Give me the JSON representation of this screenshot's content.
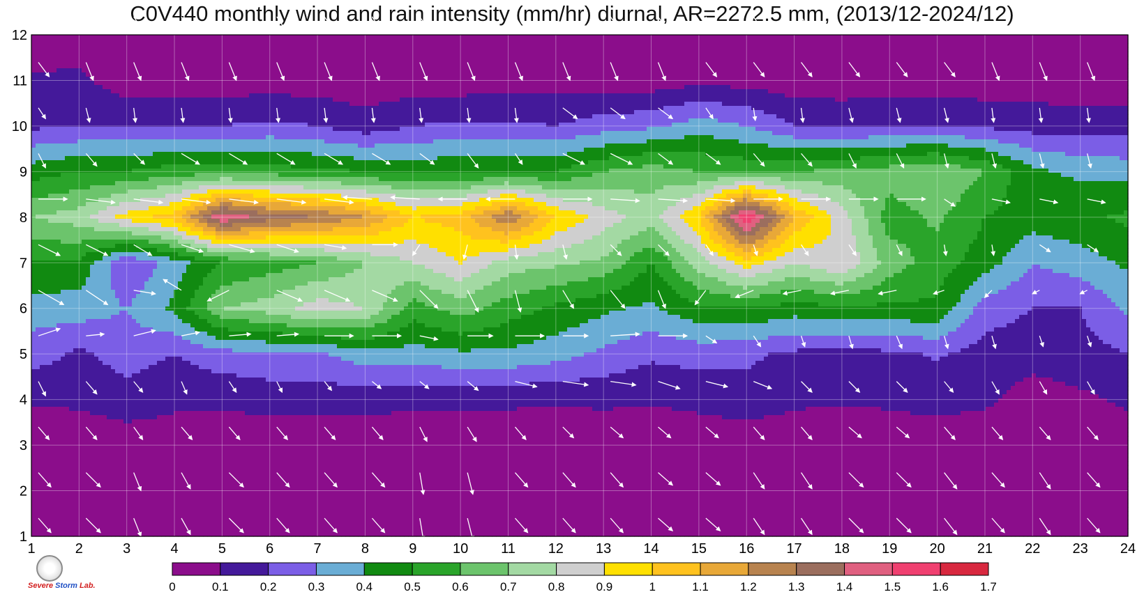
{
  "title": "C0V440 monthly wind and rain intensity (mm/hr) diurnal, AR=2272.5 mm, (2013/12-2024/12)",
  "chart_data": {
    "type": "heatmap",
    "title": "C0V440 monthly wind and rain intensity (mm/hr) diurnal, AR=2272.5 mm, (2013/12-2024/12)",
    "xlabel": "",
    "ylabel": "",
    "xlim": [
      1,
      24
    ],
    "ylim": [
      1,
      12
    ],
    "x_ticks": [
      1,
      2,
      3,
      4,
      5,
      6,
      7,
      8,
      9,
      10,
      11,
      12,
      13,
      14,
      15,
      16,
      17,
      18,
      19,
      20,
      21,
      22,
      23,
      24
    ],
    "y_ticks": [
      1,
      2,
      3,
      4,
      5,
      6,
      7,
      8,
      9,
      10,
      11,
      12
    ],
    "grid": true,
    "x": [
      1,
      2,
      3,
      4,
      5,
      6,
      7,
      8,
      9,
      10,
      11,
      12,
      13,
      14,
      15,
      16,
      17,
      18,
      19,
      20,
      21,
      22,
      23,
      24
    ],
    "y": [
      1,
      2,
      3,
      4,
      5,
      6,
      7,
      8,
      9,
      10,
      11,
      12
    ],
    "z": [
      [
        0.02,
        0.02,
        0.02,
        0.02,
        0.02,
        0.02,
        0.02,
        0.02,
        0.02,
        0.02,
        0.02,
        0.02,
        0.02,
        0.02,
        0.02,
        0.02,
        0.02,
        0.02,
        0.02,
        0.02,
        0.02,
        0.02,
        0.02,
        0.02
      ],
      [
        0.02,
        0.02,
        0.02,
        0.02,
        0.02,
        0.02,
        0.02,
        0.02,
        0.02,
        0.02,
        0.02,
        0.02,
        0.02,
        0.02,
        0.02,
        0.02,
        0.02,
        0.02,
        0.02,
        0.02,
        0.02,
        0.02,
        0.02,
        0.02
      ],
      [
        0.03,
        0.03,
        0.05,
        0.05,
        0.03,
        0.03,
        0.03,
        0.03,
        0.03,
        0.03,
        0.03,
        0.03,
        0.03,
        0.03,
        0.03,
        0.03,
        0.03,
        0.03,
        0.03,
        0.03,
        0.03,
        0.03,
        0.03,
        0.03
      ],
      [
        0.11,
        0.12,
        0.15,
        0.12,
        0.12,
        0.14,
        0.14,
        0.14,
        0.12,
        0.12,
        0.12,
        0.11,
        0.12,
        0.11,
        0.13,
        0.16,
        0.12,
        0.11,
        0.12,
        0.14,
        0.12,
        0.05,
        0.08,
        0.12
      ],
      [
        0.25,
        0.18,
        0.25,
        0.2,
        0.26,
        0.28,
        0.28,
        0.36,
        0.36,
        0.38,
        0.38,
        0.34,
        0.28,
        0.22,
        0.24,
        0.22,
        0.18,
        0.16,
        0.18,
        0.21,
        0.16,
        0.14,
        0.16,
        0.2
      ],
      [
        0.35,
        0.35,
        0.3,
        0.42,
        0.7,
        0.75,
        0.85,
        0.8,
        0.55,
        0.65,
        0.55,
        0.48,
        0.42,
        0.38,
        0.48,
        0.5,
        0.45,
        0.48,
        0.48,
        0.48,
        0.25,
        0.2,
        0.2,
        0.32
      ],
      [
        0.5,
        0.48,
        0.2,
        0.35,
        0.5,
        0.55,
        0.6,
        0.7,
        0.8,
        0.9,
        0.75,
        0.72,
        0.68,
        0.5,
        0.75,
        0.95,
        0.8,
        0.9,
        0.65,
        0.55,
        0.45,
        0.3,
        0.35,
        0.42
      ],
      [
        0.7,
        0.75,
        0.95,
        1.05,
        1.5,
        1.35,
        1.3,
        1.2,
        1.0,
        1.05,
        1.3,
        1.0,
        0.85,
        0.75,
        1.0,
        1.6,
        1.1,
        0.85,
        0.55,
        0.62,
        0.5,
        0.45,
        0.48,
        0.52
      ],
      [
        0.45,
        0.5,
        0.5,
        0.55,
        0.55,
        0.55,
        0.52,
        0.5,
        0.48,
        0.48,
        0.5,
        0.5,
        0.6,
        0.65,
        0.6,
        0.58,
        0.6,
        0.62,
        0.65,
        0.7,
        0.6,
        0.42,
        0.38,
        0.36
      ],
      [
        0.18,
        0.2,
        0.2,
        0.2,
        0.2,
        0.22,
        0.2,
        0.14,
        0.2,
        0.22,
        0.22,
        0.2,
        0.25,
        0.28,
        0.35,
        0.3,
        0.2,
        0.18,
        0.2,
        0.2,
        0.18,
        0.16,
        0.15,
        0.15
      ],
      [
        0.11,
        0.12,
        0.04,
        0.04,
        0.04,
        0.05,
        0.04,
        0.04,
        0.04,
        0.04,
        0.05,
        0.06,
        0.05,
        0.04,
        0.07,
        0.06,
        0.04,
        0.04,
        0.04,
        0.04,
        0.04,
        0.04,
        0.04,
        0.04
      ],
      [
        0.04,
        0.05,
        0.02,
        0.02,
        0.02,
        0.02,
        0.02,
        0.02,
        0.02,
        0.02,
        0.02,
        0.02,
        0.02,
        0.02,
        0.02,
        0.02,
        0.02,
        0.02,
        0.02,
        0.02,
        0.02,
        0.02,
        0.02,
        0.02
      ]
    ],
    "colorbar": {
      "levels": [
        0,
        0.1,
        0.2,
        0.3,
        0.4,
        0.5,
        0.6,
        0.7,
        0.8,
        0.9,
        1,
        1.1,
        1.2,
        1.3,
        1.4,
        1.5,
        1.6,
        1.7
      ],
      "labels": [
        "0",
        "0.1",
        "0.2",
        "0.3",
        "0.4",
        "0.5",
        "0.6",
        "0.7",
        "0.8",
        "0.9",
        "1",
        "1.1",
        "1.2",
        "1.3",
        "1.4",
        "1.5",
        "1.6",
        "1.7"
      ],
      "colors": [
        "#8b0d8b",
        "#44199a",
        "#7b5ee6",
        "#6aadd5",
        "#118a11",
        "#2aa42a",
        "#6cc46c",
        "#a3d9a3",
        "#cfcfcf",
        "#ffe000",
        "#ffc21e",
        "#e8a838",
        "#b8834f",
        "#9b6e5e",
        "#e06080",
        "#f04070",
        "#d8283f"
      ]
    },
    "wind": {
      "u": [
        [
          0.35,
          0.4,
          0.2,
          0.25,
          0.4,
          0.35,
          0.35,
          0.35,
          0.1,
          0.15,
          0.35,
          0.35,
          0.35,
          0.4,
          0.4,
          0.3,
          0.3,
          0.4,
          0.4,
          0.35,
          0.35,
          0.3,
          0.35,
          0.3
        ],
        [
          0.35,
          0.4,
          0.2,
          0.25,
          0.4,
          0.35,
          0.35,
          0.35,
          0.1,
          0.15,
          0.35,
          0.35,
          0.35,
          0.4,
          0.4,
          0.3,
          0.3,
          0.4,
          0.4,
          0.35,
          0.35,
          0.3,
          0.35,
          0.3
        ],
        [
          0.3,
          0.3,
          0.25,
          0.3,
          0.3,
          0.3,
          0.3,
          0.3,
          0.2,
          0.25,
          0.3,
          0.3,
          0.35,
          0.35,
          0.35,
          0.3,
          0.3,
          0.35,
          0.35,
          0.3,
          0.3,
          0.3,
          0.3,
          0.3
        ],
        [
          0.2,
          0.3,
          0.25,
          0.15,
          0.2,
          0.15,
          0.2,
          0.25,
          0.25,
          0.3,
          0.6,
          0.7,
          0.7,
          0.6,
          0.6,
          0.5,
          0.3,
          0.3,
          0.3,
          0.25,
          0.2,
          0.2,
          0.2,
          0.2
        ],
        [
          0.6,
          0.5,
          0.6,
          0.5,
          0.6,
          0.6,
          0.8,
          0.8,
          0.5,
          0.7,
          0.8,
          0.7,
          0.8,
          0.8,
          0.3,
          0.2,
          0.1,
          0.1,
          0.15,
          0.1,
          0.1,
          0.1,
          0.1,
          0.1
        ],
        [
          0.7,
          0.6,
          0.6,
          -0.5,
          -0.6,
          0.7,
          0.7,
          0.7,
          0.5,
          0.3,
          0.15,
          0.3,
          0.4,
          0.2,
          -0.3,
          -0.5,
          -0.5,
          -0.5,
          -0.5,
          -0.3,
          -0.2,
          -0.2,
          -0.2,
          0.3
        ],
        [
          0.6,
          0.6,
          0.5,
          0.6,
          0.7,
          0.6,
          0.6,
          0.7,
          -0.2,
          -0.1,
          0.05,
          0.1,
          0.3,
          0.3,
          0.2,
          0.1,
          0.2,
          0.2,
          0.15,
          0.05,
          0.05,
          0.3,
          0.3,
          0.3
        ],
        [
          0.8,
          0.8,
          0.8,
          0.8,
          0.8,
          0.8,
          0.8,
          -0.8,
          -0.8,
          -0.8,
          -0.8,
          0.8,
          0.8,
          0.8,
          0.8,
          0.8,
          0.8,
          0.8,
          0.8,
          0.3,
          0.5,
          0.5,
          0.5,
          0.5
        ],
        [
          0.2,
          0.3,
          0.3,
          0.5,
          0.5,
          0.5,
          0.5,
          0.5,
          0.4,
          0.3,
          0.2,
          0.6,
          0.6,
          0.4,
          0.4,
          0.3,
          0.3,
          0.2,
          0.2,
          0.1,
          0.1,
          0.1,
          0.1,
          0.1
        ],
        [
          0.2,
          0.1,
          0.05,
          0.05,
          0.05,
          0.05,
          0.05,
          0.05,
          0.05,
          0.05,
          0.05,
          0.4,
          0.4,
          0.4,
          0.2,
          0.05,
          0.05,
          0.1,
          0.1,
          0.1,
          0.05,
          0.05,
          0.05,
          0.05
        ],
        [
          0.3,
          0.2,
          0.2,
          0.2,
          0.2,
          0.2,
          0.2,
          0.2,
          0.2,
          0.2,
          0.2,
          0.2,
          0.2,
          0.2,
          0.3,
          0.3,
          0.3,
          0.3,
          0.3,
          0.3,
          0.2,
          0.2,
          0.2,
          0.2
        ],
        [
          0.3,
          0.3,
          0.3,
          0.3,
          0.3,
          0.3,
          0.3,
          0.3,
          0.3,
          0.3,
          0.3,
          0.3,
          0.3,
          0.3,
          0.3,
          0.3,
          0.3,
          0.3,
          0.3,
          0.3,
          0.3,
          0.3,
          0.3,
          0.3
        ]
      ],
      "v": [
        [
          -0.4,
          -0.4,
          -0.5,
          -0.45,
          -0.4,
          -0.4,
          -0.4,
          -0.4,
          -0.6,
          -0.6,
          -0.4,
          -0.4,
          -0.4,
          -0.35,
          -0.35,
          -0.45,
          -0.45,
          -0.4,
          -0.4,
          -0.45,
          -0.4,
          -0.45,
          -0.4,
          -0.45
        ],
        [
          -0.4,
          -0.4,
          -0.5,
          -0.45,
          -0.4,
          -0.4,
          -0.4,
          -0.4,
          -0.6,
          -0.6,
          -0.4,
          -0.4,
          -0.4,
          -0.35,
          -0.35,
          -0.45,
          -0.45,
          -0.4,
          -0.4,
          -0.45,
          -0.4,
          -0.45,
          -0.4,
          -0.45
        ],
        [
          -0.35,
          -0.35,
          -0.35,
          -0.35,
          -0.35,
          -0.35,
          -0.35,
          -0.35,
          -0.4,
          -0.4,
          -0.35,
          -0.3,
          -0.3,
          -0.3,
          -0.3,
          -0.35,
          -0.35,
          -0.3,
          -0.3,
          -0.35,
          -0.35,
          -0.35,
          -0.35,
          -0.35
        ],
        [
          -0.4,
          -0.35,
          -0.3,
          -0.35,
          -0.3,
          -0.3,
          -0.25,
          -0.2,
          -0.2,
          -0.25,
          -0.15,
          -0.1,
          -0.1,
          -0.2,
          -0.15,
          -0.2,
          -0.3,
          -0.3,
          -0.3,
          -0.3,
          -0.35,
          -0.35,
          -0.35,
          -0.35
        ],
        [
          0.2,
          0.05,
          0.15,
          0.1,
          0.05,
          0.05,
          0.0,
          0.0,
          -0.1,
          0.0,
          0.0,
          0.0,
          0.05,
          0.0,
          -0.2,
          -0.3,
          -0.3,
          -0.35,
          -0.35,
          -0.35,
          -0.35,
          -0.3,
          -0.3,
          -0.3
        ],
        [
          -0.4,
          -0.4,
          -0.1,
          0.3,
          -0.3,
          -0.3,
          -0.3,
          -0.3,
          -0.5,
          -0.6,
          -0.6,
          -0.5,
          -0.5,
          -0.5,
          -0.4,
          -0.2,
          -0.1,
          -0.1,
          -0.1,
          -0.1,
          -0.2,
          -0.1,
          -0.1,
          -0.3
        ],
        [
          -0.3,
          -0.3,
          -0.3,
          -0.2,
          -0.2,
          -0.2,
          -0.1,
          0.0,
          -0.3,
          -0.4,
          -0.4,
          -0.4,
          -0.3,
          -0.3,
          -0.3,
          -0.3,
          -0.3,
          -0.3,
          -0.3,
          -0.3,
          -0.3,
          -0.2,
          -0.2,
          -0.2
        ],
        [
          0.0,
          -0.1,
          -0.1,
          -0.1,
          -0.1,
          -0.1,
          -0.1,
          0.05,
          0.05,
          0.0,
          0.0,
          0.0,
          -0.05,
          -0.05,
          -0.05,
          0.0,
          0.0,
          0.0,
          0.0,
          -0.2,
          -0.1,
          -0.1,
          -0.1,
          0.0
        ],
        [
          -0.4,
          -0.35,
          -0.3,
          -0.3,
          -0.3,
          -0.3,
          -0.3,
          -0.3,
          -0.3,
          -0.4,
          -0.3,
          -0.3,
          -0.3,
          -0.3,
          -0.3,
          -0.35,
          -0.35,
          -0.4,
          -0.4,
          -0.4,
          -0.4,
          -0.4,
          -0.4,
          -0.4
        ],
        [
          -0.3,
          -0.4,
          -0.4,
          -0.4,
          -0.4,
          -0.4,
          -0.4,
          -0.4,
          -0.4,
          -0.4,
          -0.4,
          -0.3,
          -0.3,
          -0.3,
          -0.3,
          -0.35,
          -0.4,
          -0.4,
          -0.4,
          -0.4,
          -0.4,
          -0.4,
          -0.4,
          -0.4
        ],
        [
          -0.4,
          -0.5,
          -0.5,
          -0.5,
          -0.5,
          -0.5,
          -0.5,
          -0.5,
          -0.5,
          -0.5,
          -0.5,
          -0.5,
          -0.5,
          -0.5,
          -0.4,
          -0.4,
          -0.4,
          -0.4,
          -0.4,
          -0.4,
          -0.5,
          -0.5,
          -0.5,
          -0.5
        ],
        [
          -0.45,
          -0.45,
          -0.45,
          -0.45,
          -0.45,
          -0.45,
          -0.45,
          -0.45,
          -0.45,
          -0.45,
          -0.45,
          -0.45,
          -0.45,
          -0.45,
          -0.45,
          -0.45,
          -0.45,
          -0.45,
          -0.45,
          -0.45,
          -0.45,
          -0.45,
          -0.45,
          -0.45
        ]
      ]
    }
  },
  "logo": {
    "line1": "Severe",
    "line2": "Storm",
    "line3": "Lab."
  }
}
